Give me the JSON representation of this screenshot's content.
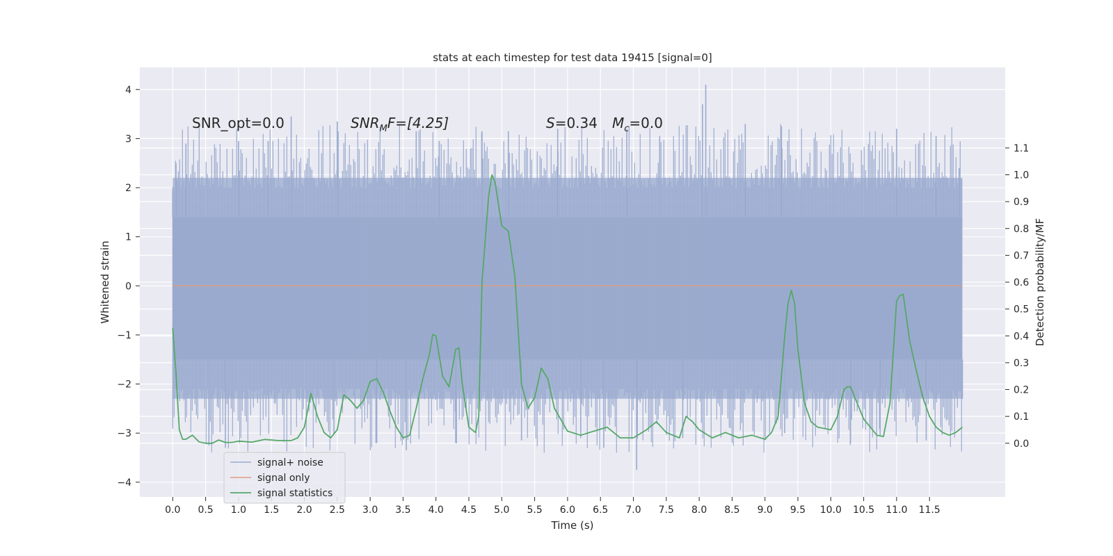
{
  "chart_data": {
    "type": "line",
    "title": "stats at each timestep for test data 19415 [signal=0]",
    "xlabel": "Time (s)",
    "ylabel": "Whitened strain",
    "y2label": "Detection probability/MF",
    "xlim": [
      -0.5,
      12.65
    ],
    "ylim": [
      -4.3,
      4.45
    ],
    "y2lim": [
      -0.2,
      1.4
    ],
    "grid": true,
    "legend_position": "lower-left",
    "xticks": [
      0.0,
      0.5,
      1.0,
      1.5,
      2.0,
      2.5,
      3.0,
      3.5,
      4.0,
      4.5,
      5.0,
      5.5,
      6.0,
      6.5,
      7.0,
      7.5,
      8.0,
      8.5,
      9.0,
      9.5,
      10.0,
      10.5,
      11.0,
      11.5
    ],
    "xtick_labels": [
      "0.0",
      "0.5",
      "1.0",
      "1.5",
      "2.0",
      "2.5",
      "3.0",
      "3.5",
      "4.0",
      "4.5",
      "5.0",
      "5.5",
      "6.0",
      "6.5",
      "7.0",
      "7.5",
      "8.0",
      "8.5",
      "9.0",
      "9.5",
      "10.0",
      "10.5",
      "11.0",
      "11.5"
    ],
    "yticks": [
      -4,
      -3,
      -2,
      -1,
      0,
      1,
      2,
      3,
      4
    ],
    "ytick_labels": [
      "−4",
      "−3",
      "−2",
      "−1",
      "0",
      "1",
      "2",
      "3",
      "4"
    ],
    "y2ticks": [
      0.0,
      0.1,
      0.2,
      0.3,
      0.4,
      0.5,
      0.6,
      0.7,
      0.8,
      0.9,
      1.0,
      1.1
    ],
    "y2tick_labels": [
      "0.0",
      "0.1",
      "0.2",
      "0.3",
      "0.4",
      "0.5",
      "0.6",
      "0.7",
      "0.8",
      "0.9",
      "1.0",
      "1.1"
    ],
    "annotations": {
      "snr_opt": "SNR_opt=0.0",
      "snr_mf_main": "SNR",
      "snr_mf_sub": "M",
      "snr_mf_rest": "F=[4.25]",
      "s_symbol": "S",
      "s_value": "=0.34",
      "mc_symbol": "M",
      "mc_sub": "c",
      "mc_value": "=0.0"
    },
    "series": [
      {
        "name": "signal+ noise",
        "color": "#9aabcf",
        "x_range": [
          0.0,
          12.0
        ],
        "core_band": [
          -1.5,
          1.4
        ],
        "typical_band": [
          -2.3,
          2.2
        ],
        "extreme_values": [
          {
            "x": 0.0,
            "y": 1.93
          },
          {
            "x": 0.0,
            "y": -1.5
          },
          {
            "x": 0.05,
            "y": 2.5
          },
          {
            "x": 0.2,
            "y": 2.9
          },
          {
            "x": 0.55,
            "y": -3.25
          },
          {
            "x": 0.8,
            "y": -3.3
          },
          {
            "x": 1.0,
            "y": 2.95
          },
          {
            "x": 1.45,
            "y": 2.95
          },
          {
            "x": 1.8,
            "y": 3.45
          },
          {
            "x": 2.5,
            "y": 3.35
          },
          {
            "x": 2.45,
            "y": -3.0
          },
          {
            "x": 3.1,
            "y": -3.2
          },
          {
            "x": 3.55,
            "y": -3.35
          },
          {
            "x": 3.7,
            "y": 3.15
          },
          {
            "x": 4.05,
            "y": 2.95
          },
          {
            "x": 4.3,
            "y": -3.2
          },
          {
            "x": 4.7,
            "y": 3.15
          },
          {
            "x": 5.1,
            "y": 3.15
          },
          {
            "x": 5.3,
            "y": -3.15
          },
          {
            "x": 5.85,
            "y": 3.2
          },
          {
            "x": 6.2,
            "y": -3.1
          },
          {
            "x": 6.55,
            "y": -3.3
          },
          {
            "x": 6.9,
            "y": 3.2
          },
          {
            "x": 7.05,
            "y": -3.75
          },
          {
            "x": 7.4,
            "y": 3.05
          },
          {
            "x": 7.75,
            "y": -3.1
          },
          {
            "x": 8.05,
            "y": 3.7
          },
          {
            "x": 8.1,
            "y": 4.1
          },
          {
            "x": 8.7,
            "y": 3.3
          },
          {
            "x": 9.25,
            "y": 3.25
          },
          {
            "x": 9.3,
            "y": -3.0
          },
          {
            "x": 10.3,
            "y": -3.2
          },
          {
            "x": 10.75,
            "y": -3.05
          },
          {
            "x": 11.0,
            "y": 3.2
          },
          {
            "x": 11.45,
            "y": -3.15
          },
          {
            "x": 11.6,
            "y": 3.05
          },
          {
            "x": 11.95,
            "y": 2.4
          },
          {
            "x": 12.0,
            "y": -2.3
          }
        ]
      },
      {
        "name": "signal only",
        "color": "#dd9c82",
        "x": [
          0.0,
          12.0
        ],
        "y": [
          0.0,
          0.0
        ]
      },
      {
        "name": "signal statistics",
        "color": "#55a868",
        "axis": "right",
        "x": [
          0.0,
          0.05,
          0.1,
          0.15,
          0.2,
          0.3,
          0.4,
          0.5,
          0.6,
          0.7,
          0.8,
          0.9,
          1.0,
          1.2,
          1.4,
          1.6,
          1.8,
          1.9,
          2.0,
          2.1,
          2.2,
          2.3,
          2.4,
          2.5,
          2.6,
          2.7,
          2.8,
          2.9,
          3.0,
          3.1,
          3.2,
          3.3,
          3.4,
          3.5,
          3.6,
          3.7,
          3.8,
          3.9,
          3.95,
          4.0,
          4.1,
          4.2,
          4.3,
          4.35,
          4.4,
          4.5,
          4.6,
          4.65,
          4.7,
          4.8,
          4.85,
          4.9,
          5.0,
          5.1,
          5.2,
          5.3,
          5.4,
          5.5,
          5.6,
          5.7,
          5.8,
          6.0,
          6.2,
          6.4,
          6.6,
          6.8,
          7.0,
          7.2,
          7.35,
          7.5,
          7.7,
          7.8,
          7.9,
          8.0,
          8.2,
          8.4,
          8.6,
          8.8,
          9.0,
          9.1,
          9.2,
          9.3,
          9.35,
          9.4,
          9.45,
          9.5,
          9.6,
          9.7,
          9.8,
          10.0,
          10.1,
          10.2,
          10.25,
          10.3,
          10.4,
          10.5,
          10.6,
          10.7,
          10.8,
          10.9,
          11.0,
          11.05,
          11.1,
          11.2,
          11.3,
          11.4,
          11.5,
          11.6,
          11.7,
          11.8,
          11.9,
          12.0
        ],
        "y": [
          0.43,
          0.26,
          0.05,
          0.015,
          0.015,
          0.03,
          0.005,
          0.0,
          0.0,
          0.012,
          0.003,
          0.003,
          0.008,
          0.004,
          0.014,
          0.01,
          0.01,
          0.02,
          0.06,
          0.185,
          0.1,
          0.04,
          0.02,
          0.05,
          0.18,
          0.16,
          0.13,
          0.16,
          0.23,
          0.24,
          0.19,
          0.12,
          0.06,
          0.02,
          0.03,
          0.13,
          0.24,
          0.33,
          0.405,
          0.4,
          0.25,
          0.21,
          0.35,
          0.355,
          0.22,
          0.06,
          0.04,
          0.1,
          0.6,
          0.92,
          1.0,
          0.97,
          0.81,
          0.79,
          0.62,
          0.22,
          0.13,
          0.17,
          0.28,
          0.24,
          0.13,
          0.045,
          0.03,
          0.045,
          0.06,
          0.02,
          0.02,
          0.05,
          0.08,
          0.04,
          0.02,
          0.1,
          0.08,
          0.05,
          0.02,
          0.04,
          0.02,
          0.03,
          0.015,
          0.04,
          0.1,
          0.4,
          0.52,
          0.57,
          0.52,
          0.35,
          0.15,
          0.08,
          0.06,
          0.05,
          0.1,
          0.2,
          0.21,
          0.21,
          0.15,
          0.09,
          0.06,
          0.03,
          0.025,
          0.15,
          0.53,
          0.55,
          0.555,
          0.38,
          0.27,
          0.17,
          0.1,
          0.06,
          0.04,
          0.03,
          0.04,
          0.06
        ]
      }
    ]
  }
}
